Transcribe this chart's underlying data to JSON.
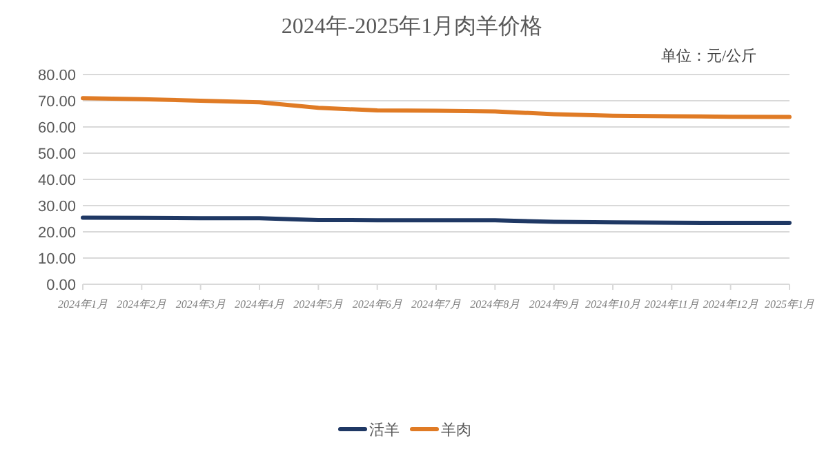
{
  "chart_data": {
    "type": "line",
    "title": "2024年-2025年1月肉羊价格",
    "annotations": [
      "单位：元/公斤"
    ],
    "categories": [
      "2024年1月",
      "2024年2月",
      "2024年3月",
      "2024年4月",
      "2024年5月",
      "2024年6月",
      "2024年7月",
      "2024年8月",
      "2024年9月",
      "2024年10月",
      "2024年11月",
      "2024年12月",
      "2025年1月"
    ],
    "series": [
      {
        "name": "活羊",
        "color": "#1f3864",
        "values": [
          25.4,
          25.3,
          25.2,
          25.2,
          24.5,
          24.4,
          24.4,
          24.4,
          23.8,
          23.6,
          23.5,
          23.4,
          23.4
        ]
      },
      {
        "name": "羊肉",
        "color": "#e07b25",
        "values": [
          71.0,
          70.6,
          70.0,
          69.4,
          67.3,
          66.3,
          66.2,
          65.9,
          64.9,
          64.3,
          64.1,
          63.9,
          63.8
        ]
      }
    ],
    "ylim": [
      0,
      80
    ],
    "yticks": [
      {
        "value": 0,
        "label": "0.00"
      },
      {
        "value": 10,
        "label": "10.00"
      },
      {
        "value": 20,
        "label": "20.00"
      },
      {
        "value": 30,
        "label": "30.00"
      },
      {
        "value": 40,
        "label": "40.00"
      },
      {
        "value": 50,
        "label": "50.00"
      },
      {
        "value": 60,
        "label": "60.00"
      },
      {
        "value": 70,
        "label": "70.00"
      },
      {
        "value": 80,
        "label": "80.00"
      }
    ],
    "grid": "y",
    "legend": "bottom",
    "marker": "none",
    "line_style": "solid"
  }
}
